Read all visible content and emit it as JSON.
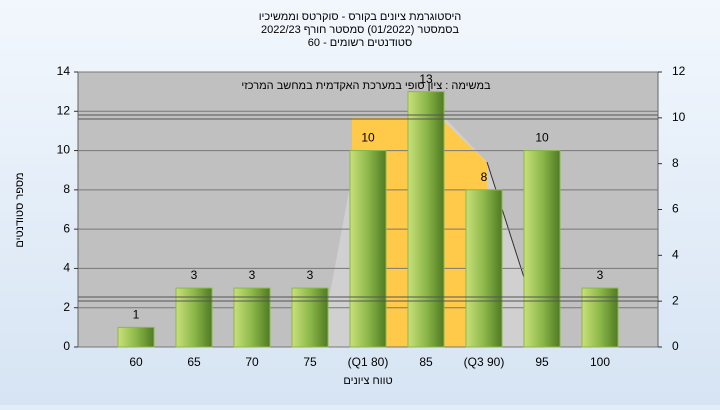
{
  "chart_data": {
    "type": "bar",
    "title": [
      "היסטוגרמת ציונים בקורס - סוקרטס וממשיכיו",
      "בסמסטר  (01/2022)  סמסטר חורף 2022/23",
      "סטודנטים רשומים - 60"
    ],
    "annotation": "במשימה : ציון סופי במערכת האקדמית במחשב המרכזי",
    "xlabel": "טווח ציונים",
    "ylabel": "מספר סטודנטים",
    "categories": [
      "60",
      "65",
      "70",
      "75",
      "(Q1 80)",
      "85",
      "(Q3 90)",
      "95",
      "100"
    ],
    "values": [
      1,
      3,
      3,
      3,
      10,
      13,
      8,
      10,
      3
    ],
    "color": "#8db84a",
    "ylim": [
      0,
      14
    ],
    "yticks": [
      0,
      2,
      4,
      6,
      8,
      10,
      12,
      14
    ],
    "y2lim": [
      0,
      12
    ],
    "y2ticks": [
      0,
      2,
      4,
      6,
      8,
      10,
      12
    ],
    "grid": true
  }
}
